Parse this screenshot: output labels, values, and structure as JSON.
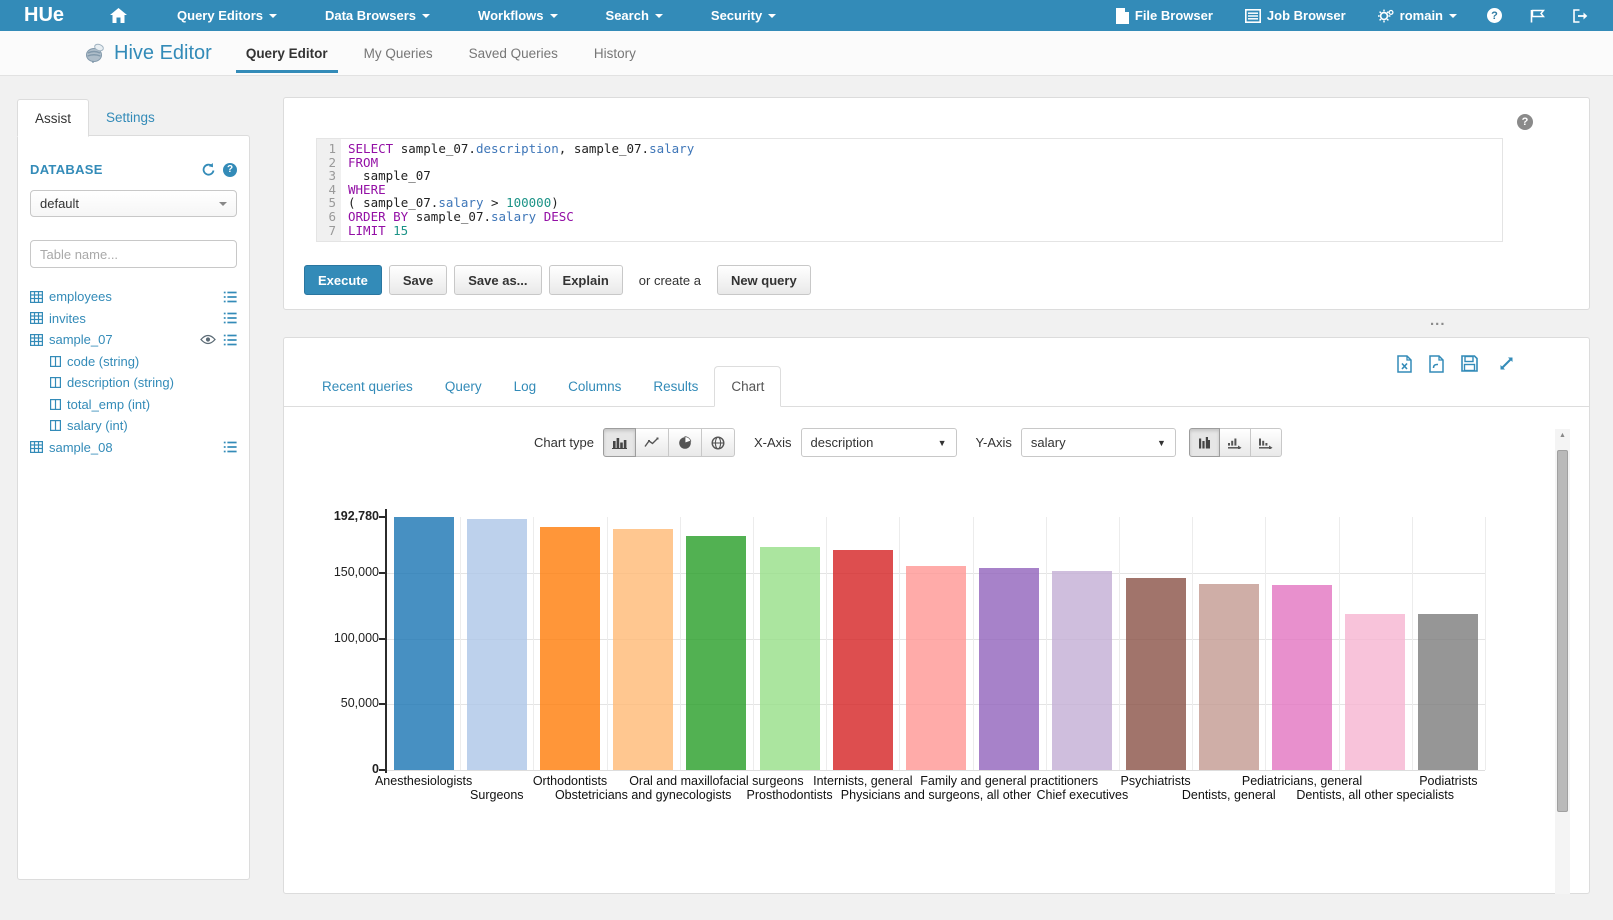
{
  "colors": {
    "accent": "#338bb8",
    "palette": [
      "#1f77b4",
      "#aec7e8",
      "#ff7f0e",
      "#ffbb78",
      "#2ca02c",
      "#98df8a",
      "#d62728",
      "#ff9896",
      "#9467bd",
      "#c5b0d5",
      "#8c564b",
      "#c49c94",
      "#e377c2",
      "#f7b6d2",
      "#7f7f7f"
    ]
  },
  "navbar": {
    "logo": "HUe",
    "menus": [
      "Query Editors",
      "Data Browsers",
      "Workflows",
      "Search",
      "Security"
    ],
    "file_browser": "File Browser",
    "job_browser": "Job Browser",
    "user": "romain"
  },
  "subnav": {
    "title": "Hive Editor",
    "tabs": [
      "Query Editor",
      "My Queries",
      "Saved Queries",
      "History"
    ],
    "active_tab": "Query Editor"
  },
  "assist": {
    "tabs": [
      "Assist",
      "Settings"
    ],
    "active_tab": "Assist",
    "database_label": "DATABASE",
    "database_value": "default",
    "filter_placeholder": "Table name...",
    "tables": [
      {
        "name": "employees",
        "eye": false,
        "columns": []
      },
      {
        "name": "invites",
        "eye": false,
        "columns": []
      },
      {
        "name": "sample_07",
        "eye": true,
        "columns": [
          "code (string)",
          "description (string)",
          "total_emp (int)",
          "salary (int)"
        ]
      },
      {
        "name": "sample_08",
        "eye": false,
        "columns": []
      }
    ]
  },
  "editor": {
    "lines": [
      {
        "n": "1",
        "seg": [
          [
            "SELECT ",
            "k"
          ],
          [
            "sample_07",
            "p"
          ],
          [
            ".",
            "p"
          ],
          [
            "description",
            "f"
          ],
          [
            ", ",
            "p"
          ],
          [
            "sample_07",
            "p"
          ],
          [
            ".",
            "p"
          ],
          [
            "salary",
            "f"
          ]
        ]
      },
      {
        "n": "2",
        "seg": [
          [
            "FROM",
            "k"
          ]
        ]
      },
      {
        "n": "3",
        "seg": [
          [
            "  sample_07",
            "p"
          ]
        ]
      },
      {
        "n": "4",
        "seg": [
          [
            "WHERE",
            "k"
          ]
        ]
      },
      {
        "n": "5",
        "seg": [
          [
            "( ",
            "p"
          ],
          [
            "sample_07",
            "p"
          ],
          [
            ".",
            "p"
          ],
          [
            "salary",
            "f"
          ],
          [
            " > ",
            "p"
          ],
          [
            "100000",
            "n"
          ],
          [
            ")",
            "p"
          ]
        ]
      },
      {
        "n": "6",
        "seg": [
          [
            "ORDER BY ",
            "k"
          ],
          [
            "sample_07",
            "p"
          ],
          [
            ".",
            "p"
          ],
          [
            "salary",
            "f"
          ],
          [
            " ",
            "p"
          ],
          [
            "DESC",
            "k"
          ]
        ]
      },
      {
        "n": "7",
        "seg": [
          [
            "LIMIT ",
            "k"
          ],
          [
            "15",
            "n"
          ]
        ]
      }
    ],
    "buttons": {
      "execute": "Execute",
      "save": "Save",
      "save_as": "Save as...",
      "explain": "Explain",
      "or_text": "or create a",
      "new_query": "New query"
    }
  },
  "results": {
    "tabs": [
      "Recent queries",
      "Query",
      "Log",
      "Columns",
      "Results",
      "Chart"
    ],
    "active_tab": "Chart",
    "controls": {
      "chart_type_label": "Chart type",
      "x_axis_label": "X-Axis",
      "x_axis_value": "description",
      "y_axis_label": "Y-Axis",
      "y_axis_value": "salary"
    }
  },
  "chart_data": {
    "type": "bar",
    "title": "",
    "xlabel": "description",
    "ylabel": "salary",
    "ylim": [
      0,
      192780
    ],
    "grid": true,
    "y_ticks": [
      {
        "label": "192,780",
        "value": 192780,
        "bold": true
      },
      {
        "label": "150,000",
        "value": 150000,
        "bold": false
      },
      {
        "label": "100,000",
        "value": 100000,
        "bold": false
      },
      {
        "label": "50,000",
        "value": 50000,
        "bold": false
      },
      {
        "label": "0",
        "value": 0,
        "bold": true
      }
    ],
    "categories": [
      "Anesthesiologists",
      "Surgeons",
      "Orthodontists",
      "Obstetricians and gynecologists",
      "Oral and maxillofacial surgeons",
      "Prosthodontists",
      "Internists, general",
      "Physicians and surgeons, all other",
      "Family and general practitioners",
      "Chief executives",
      "Psychiatrists",
      "Dentists, general",
      "Pediatricians, general",
      "Dentists, all other specialists",
      "Podiatrists"
    ],
    "values": [
      192780,
      191410,
      185340,
      183610,
      178440,
      169810,
      167270,
      155150,
      153640,
      151370,
      146150,
      142070,
      140690,
      118820,
      118500
    ]
  }
}
